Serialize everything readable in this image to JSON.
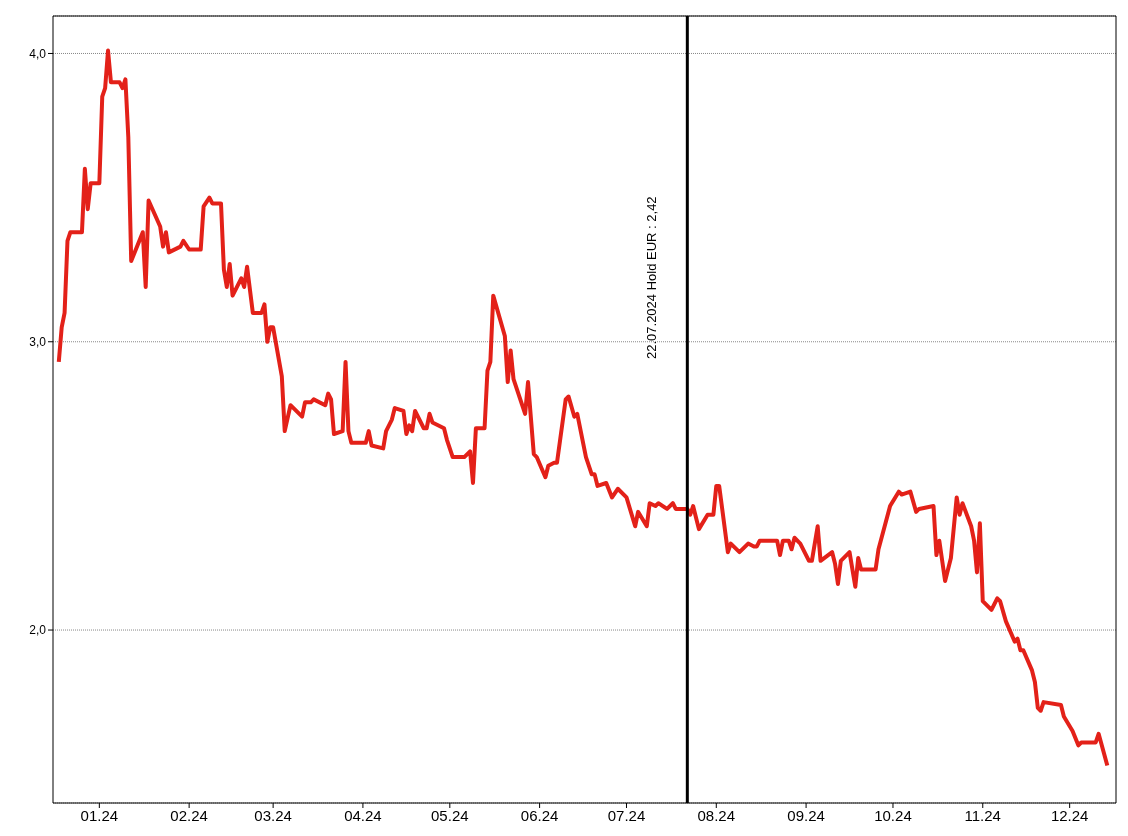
{
  "chart_data": {
    "type": "line",
    "xlim": [
      "2023-12-16",
      "2024-12-17"
    ],
    "ylim": [
      1.4,
      4.13
    ],
    "xticks": [
      {
        "value": "2024-01-01",
        "label": "01.24"
      },
      {
        "value": "2024-02-01",
        "label": "02.24"
      },
      {
        "value": "2024-03-01",
        "label": "03.24"
      },
      {
        "value": "2024-04-01",
        "label": "04.24"
      },
      {
        "value": "2024-05-01",
        "label": "05.24"
      },
      {
        "value": "2024-06-01",
        "label": "06.24"
      },
      {
        "value": "2024-07-01",
        "label": "07.24"
      },
      {
        "value": "2024-08-01",
        "label": "08.24"
      },
      {
        "value": "2024-09-01",
        "label": "09.24"
      },
      {
        "value": "2024-10-01",
        "label": "10.24"
      },
      {
        "value": "2024-11-01",
        "label": "11.24"
      },
      {
        "value": "2024-12-01",
        "label": "12.24"
      }
    ],
    "yticks": [
      {
        "value": 2,
        "label": "2,0"
      },
      {
        "value": 3,
        "label": "3,0"
      },
      {
        "value": 4,
        "label": "4,0"
      }
    ],
    "grid": "y",
    "legend": false,
    "marker": "none",
    "line_style": "solid",
    "ref_lines": [
      {
        "axis": "x",
        "value": "2024-07-22",
        "label": "22.07.2024 Hold EUR : 2,42",
        "color": "#000000",
        "line_style": "solid"
      }
    ],
    "x": [
      "2023-12-18",
      "2023-12-19",
      "2023-12-20",
      "2023-12-21",
      "2023-12-22",
      "2023-12-26",
      "2023-12-27",
      "2023-12-28",
      "2023-12-29",
      "2024-01-01",
      "2024-01-02",
      "2024-01-03",
      "2024-01-04",
      "2024-01-05",
      "2024-01-08",
      "2024-01-09",
      "2024-01-10",
      "2024-01-11",
      "2024-01-12",
      "2024-01-16",
      "2024-01-17",
      "2024-01-18",
      "2024-01-22",
      "2024-01-23",
      "2024-01-24",
      "2024-01-25",
      "2024-01-29",
      "2024-01-30",
      "2024-02-01",
      "2024-02-05",
      "2024-02-06",
      "2024-02-08",
      "2024-02-09",
      "2024-02-12",
      "2024-02-13",
      "2024-02-14",
      "2024-02-15",
      "2024-02-16",
      "2024-02-19",
      "2024-02-20",
      "2024-02-21",
      "2024-02-23",
      "2024-02-26",
      "2024-02-27",
      "2024-02-28",
      "2024-02-29",
      "2024-03-01",
      "2024-03-04",
      "2024-03-05",
      "2024-03-07",
      "2024-03-11",
      "2024-03-12",
      "2024-03-14",
      "2024-03-15",
      "2024-03-19",
      "2024-03-20",
      "2024-03-21",
      "2024-03-22",
      "2024-03-25",
      "2024-03-26",
      "2024-03-27",
      "2024-03-28",
      "2024-04-02",
      "2024-04-03",
      "2024-04-04",
      "2024-04-08",
      "2024-04-09",
      "2024-04-11",
      "2024-04-12",
      "2024-04-15",
      "2024-04-16",
      "2024-04-17",
      "2024-04-18",
      "2024-04-19",
      "2024-04-22",
      "2024-04-23",
      "2024-04-24",
      "2024-04-25",
      "2024-04-29",
      "2024-04-30",
      "2024-05-02",
      "2024-05-03",
      "2024-05-06",
      "2024-05-08",
      "2024-05-09",
      "2024-05-10",
      "2024-05-13",
      "2024-05-14",
      "2024-05-15",
      "2024-05-16",
      "2024-05-20",
      "2024-05-21",
      "2024-05-22",
      "2024-05-23",
      "2024-05-27",
      "2024-05-28",
      "2024-05-30",
      "2024-05-31",
      "2024-06-03",
      "2024-06-04",
      "2024-06-06",
      "2024-06-07",
      "2024-06-10",
      "2024-06-11",
      "2024-06-13",
      "2024-06-14",
      "2024-06-17",
      "2024-06-19",
      "2024-06-20",
      "2024-06-21",
      "2024-06-24",
      "2024-06-26",
      "2024-06-28",
      "2024-07-01",
      "2024-07-04",
      "2024-07-05",
      "2024-07-08",
      "2024-07-09",
      "2024-07-11",
      "2024-07-12",
      "2024-07-15",
      "2024-07-17",
      "2024-07-18",
      "2024-07-22",
      "2024-07-23",
      "2024-07-24",
      "2024-07-26",
      "2024-07-29",
      "2024-07-31",
      "2024-08-01",
      "2024-08-02",
      "2024-08-05",
      "2024-08-06",
      "2024-08-09",
      "2024-08-12",
      "2024-08-14",
      "2024-08-15",
      "2024-08-16",
      "2024-08-22",
      "2024-08-23",
      "2024-08-24",
      "2024-08-26",
      "2024-08-27",
      "2024-08-28",
      "2024-08-30",
      "2024-09-02",
      "2024-09-03",
      "2024-09-05",
      "2024-09-06",
      "2024-09-10",
      "2024-09-11",
      "2024-09-12",
      "2024-09-13",
      "2024-09-16",
      "2024-09-18",
      "2024-09-19",
      "2024-09-20",
      "2024-09-25",
      "2024-09-26",
      "2024-09-30",
      "2024-10-03",
      "2024-10-04",
      "2024-10-07",
      "2024-10-09",
      "2024-10-10",
      "2024-10-15",
      "2024-10-16",
      "2024-10-17",
      "2024-10-19",
      "2024-10-21",
      "2024-10-23",
      "2024-10-24",
      "2024-10-25",
      "2024-10-28",
      "2024-10-29",
      "2024-10-30",
      "2024-10-31",
      "2024-11-01",
      "2024-11-04",
      "2024-11-06",
      "2024-11-07",
      "2024-11-09",
      "2024-11-12",
      "2024-11-13",
      "2024-11-14",
      "2024-11-15",
      "2024-11-18",
      "2024-11-19",
      "2024-11-20",
      "2024-11-21",
      "2024-11-22",
      "2024-11-28",
      "2024-11-29",
      "2024-12-02",
      "2024-12-04",
      "2024-12-05",
      "2024-12-10",
      "2024-12-11",
      "2024-12-14"
    ],
    "series": [
      {
        "color": "#e32119",
        "values": [
          2.93,
          3.05,
          3.1,
          3.35,
          3.38,
          3.38,
          3.6,
          3.46,
          3.55,
          3.55,
          3.85,
          3.88,
          4.01,
          3.9,
          3.9,
          3.88,
          3.91,
          3.71,
          3.28,
          3.38,
          3.19,
          3.49,
          3.4,
          3.33,
          3.38,
          3.31,
          3.33,
          3.35,
          3.32,
          3.32,
          3.47,
          3.5,
          3.48,
          3.48,
          3.25,
          3.19,
          3.27,
          3.16,
          3.22,
          3.19,
          3.26,
          3.1,
          3.1,
          3.13,
          3.0,
          3.05,
          3.05,
          2.88,
          2.69,
          2.78,
          2.74,
          2.79,
          2.79,
          2.8,
          2.78,
          2.82,
          2.8,
          2.68,
          2.69,
          2.93,
          2.69,
          2.65,
          2.65,
          2.69,
          2.64,
          2.63,
          2.69,
          2.73,
          2.77,
          2.76,
          2.68,
          2.71,
          2.69,
          2.76,
          2.7,
          2.7,
          2.75,
          2.72,
          2.7,
          2.66,
          2.6,
          2.6,
          2.6,
          2.62,
          2.51,
          2.7,
          2.7,
          2.9,
          2.93,
          3.16,
          3.02,
          2.86,
          2.97,
          2.87,
          2.75,
          2.86,
          2.61,
          2.6,
          2.53,
          2.57,
          2.58,
          2.58,
          2.8,
          2.81,
          2.74,
          2.75,
          2.6,
          2.54,
          2.54,
          2.5,
          2.51,
          2.46,
          2.49,
          2.46,
          2.36,
          2.41,
          2.36,
          2.44,
          2.43,
          2.44,
          2.42,
          2.44,
          2.42,
          2.42,
          2.4,
          2.43,
          2.35,
          2.4,
          2.4,
          2.5,
          2.5,
          2.27,
          2.3,
          2.27,
          2.3,
          2.29,
          2.29,
          2.31,
          2.31,
          2.26,
          2.31,
          2.31,
          2.28,
          2.32,
          2.3,
          2.24,
          2.24,
          2.36,
          2.24,
          2.27,
          2.23,
          2.16,
          2.24,
          2.27,
          2.15,
          2.25,
          2.21,
          2.21,
          2.28,
          2.43,
          2.48,
          2.47,
          2.48,
          2.41,
          2.42,
          2.43,
          2.26,
          2.31,
          2.17,
          2.25,
          2.46,
          2.4,
          2.44,
          2.36,
          2.31,
          2.2,
          2.37,
          2.1,
          2.07,
          2.11,
          2.1,
          2.03,
          1.96,
          1.97,
          1.93,
          1.93,
          1.86,
          1.82,
          1.73,
          1.72,
          1.75,
          1.74,
          1.7,
          1.65,
          1.6,
          1.61,
          1.61,
          1.64,
          1.53
        ]
      }
    ]
  }
}
